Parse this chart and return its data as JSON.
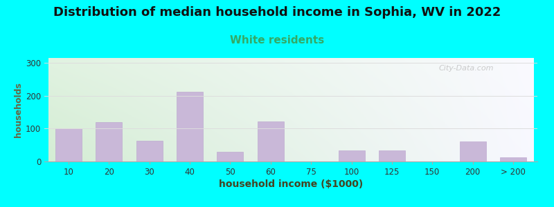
{
  "title": "Distribution of median household income in Sophia, WV in 2022",
  "subtitle": "White residents",
  "xlabel": "household income ($1000)",
  "ylabel": "households",
  "title_fontsize": 13,
  "subtitle_fontsize": 11,
  "subtitle_color": "#33aa66",
  "background_outer": "#00ffff",
  "bar_color": "#c9b8d8",
  "bar_edge_color": "#b8a0cc",
  "yticks": [
    0,
    100,
    200,
    300
  ],
  "ylim": [
    0,
    315
  ],
  "xlabels": [
    "10",
    "20",
    "30",
    "40",
    "50",
    "60",
    "75",
    "100",
    "125",
    "150",
    "200",
    "> 200"
  ],
  "values": [
    100,
    120,
    62,
    213,
    30,
    122,
    0,
    33,
    33,
    0,
    60,
    12
  ],
  "watermark": "City-Data.com",
  "grid_color": "#dddddd",
  "ylabel_color": "#888855",
  "xlabel_color": "#555533"
}
